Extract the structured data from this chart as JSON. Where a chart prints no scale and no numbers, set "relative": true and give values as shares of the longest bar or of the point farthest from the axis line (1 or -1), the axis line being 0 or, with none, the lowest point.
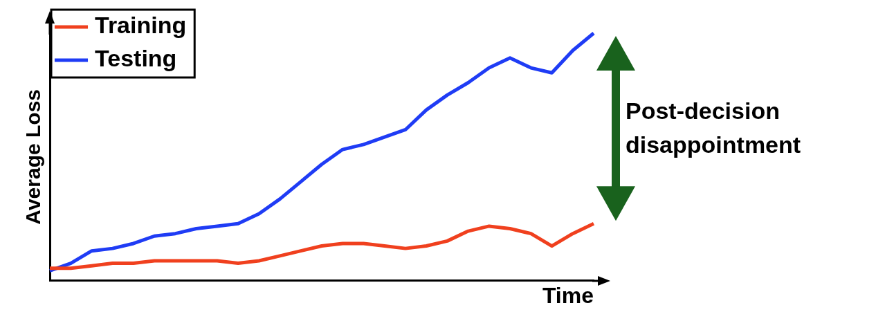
{
  "chart_data": {
    "type": "line",
    "relative": true,
    "xlabel": "Time",
    "ylabel": "Average Loss",
    "legend": "top left",
    "grid": false,
    "marker": "none",
    "tick_labels": false,
    "categories": [
      null,
      null,
      null,
      null,
      null,
      null,
      null,
      null,
      null,
      null,
      null,
      null,
      null,
      null,
      null,
      null,
      null,
      null,
      null,
      null,
      null,
      null,
      null,
      null,
      null,
      null,
      null
    ],
    "series": [
      {
        "name": "Training",
        "color": "#f0401e",
        "values": [
          0.05,
          0.05,
          0.06,
          0.07,
          0.07,
          0.08,
          0.08,
          0.08,
          0.08,
          0.07,
          0.08,
          0.1,
          0.12,
          0.14,
          0.15,
          0.15,
          0.14,
          0.13,
          0.14,
          0.16,
          0.2,
          0.22,
          0.21,
          0.19,
          0.14,
          0.19,
          0.23
        ]
      },
      {
        "name": "Testing",
        "color": "#1f3cf5",
        "values": [
          0.04,
          0.07,
          0.12,
          0.13,
          0.15,
          0.18,
          0.19,
          0.21,
          0.22,
          0.23,
          0.27,
          0.33,
          0.4,
          0.47,
          0.53,
          0.55,
          0.58,
          0.61,
          0.69,
          0.75,
          0.8,
          0.86,
          0.9,
          0.86,
          0.84,
          0.93,
          1
        ]
      }
    ],
    "annotations": [
      "Post-decision disappointment"
    ]
  }
}
